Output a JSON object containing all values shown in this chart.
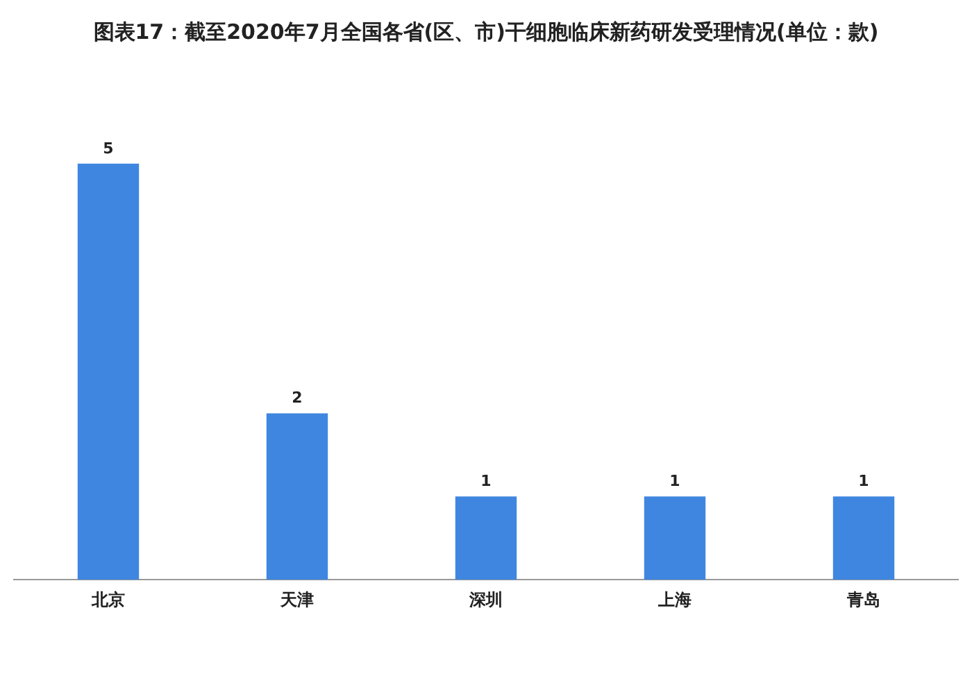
{
  "chart_data": {
    "type": "bar",
    "title": "图表17：截至2020年7月全国各省(区、市)干细胞临床新药研发受理情况(单位：款)",
    "categories": [
      "北京",
      "天津",
      "深圳",
      "上海",
      "青岛"
    ],
    "values": [
      5,
      2,
      1,
      1,
      1
    ],
    "color": "#3f86e0",
    "data_labels": true,
    "grid": false,
    "legend": false,
    "tick_labels": "x"
  }
}
